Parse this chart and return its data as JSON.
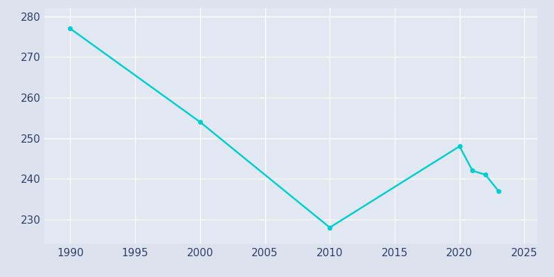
{
  "years": [
    1990,
    2000,
    2010,
    2020,
    2021,
    2022,
    2023
  ],
  "population": [
    277,
    254,
    228,
    248,
    242,
    241,
    237
  ],
  "line_color": "#00CED1",
  "marker": "o",
  "marker_size": 4,
  "bg_color": "#dde3ee",
  "plot_bg_color": "#e2e8f2",
  "grid_color": "#ffffff",
  "xlim": [
    1988,
    2026
  ],
  "ylim": [
    224,
    282
  ],
  "xticks": [
    1990,
    1995,
    2000,
    2005,
    2010,
    2015,
    2020,
    2025
  ],
  "yticks": [
    230,
    240,
    250,
    260,
    270,
    280
  ],
  "tick_color": "#2d3e6b",
  "tick_fontsize": 11
}
